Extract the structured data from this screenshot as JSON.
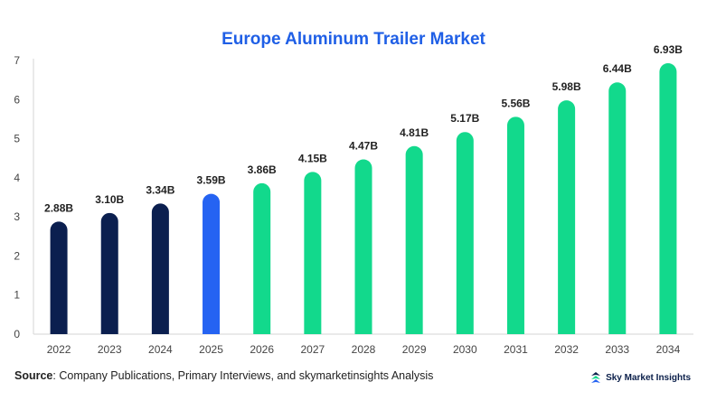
{
  "chart_data": {
    "type": "bar",
    "title": "Europe Aluminum Trailer Market",
    "xlabel": "",
    "ylabel": "",
    "categories": [
      "2022",
      "2023",
      "2024",
      "2025",
      "2026",
      "2027",
      "2028",
      "2029",
      "2030",
      "2031",
      "2032",
      "2033",
      "2034"
    ],
    "values": [
      2.88,
      3.1,
      3.34,
      3.59,
      3.86,
      4.15,
      4.47,
      4.81,
      5.17,
      5.56,
      5.98,
      6.44,
      6.93
    ],
    "data_labels": [
      "2.88B",
      "3.10B",
      "3.34B",
      "3.59B",
      "3.86B",
      "4.15B",
      "4.47B",
      "4.81B",
      "5.17B",
      "5.56B",
      "5.98B",
      "6.44B",
      "6.93B"
    ],
    "bar_colors": [
      "#0b1f4f",
      "#0b1f4f",
      "#0b1f4f",
      "#2563f2",
      "#12d98c",
      "#12d98c",
      "#12d98c",
      "#12d98c",
      "#12d98c",
      "#12d98c",
      "#12d98c",
      "#12d98c",
      "#12d98c"
    ],
    "yticks": [
      0,
      1,
      2,
      3,
      4,
      5,
      6,
      7
    ],
    "ylim": [
      0,
      7
    ],
    "grid": false,
    "legend": "none"
  },
  "colors": {
    "title": "#1f5fe6",
    "historical": "#0b1f4f",
    "base_year": "#2563f2",
    "forecast": "#12d98c"
  },
  "footer": {
    "source_label": "Source",
    "source_text": ": Company Publications, Primary Interviews, and skymarketinsights Analysis",
    "brand_name": "Sky Market Insights",
    "brand_icon": "sky-market-insights-logo-icon"
  }
}
